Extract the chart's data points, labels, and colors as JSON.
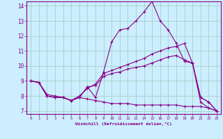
{
  "xlabel": "Windchill (Refroidissement éolien,°C)",
  "bg_color": "#cceeff",
  "line_color": "#880088",
  "grid_color": "#99ccbb",
  "xmin": 0,
  "xmax": 23,
  "ymin": 7,
  "ymax": 14,
  "yticks": [
    7,
    8,
    9,
    10,
    11,
    12,
    13,
    14
  ],
  "xticks": [
    0,
    1,
    2,
    3,
    4,
    5,
    6,
    7,
    8,
    9,
    10,
    11,
    12,
    13,
    14,
    15,
    16,
    17,
    18,
    19,
    20,
    21,
    22,
    23
  ],
  "line1_y": [
    9.0,
    8.9,
    8.0,
    7.9,
    7.9,
    7.7,
    7.9,
    8.6,
    7.9,
    9.6,
    11.6,
    12.4,
    12.5,
    13.0,
    13.6,
    14.3,
    13.0,
    12.4,
    11.5,
    10.3,
    10.2,
    7.6,
    7.2,
    7.0
  ],
  "line2_y": [
    9.0,
    8.9,
    8.1,
    8.0,
    7.9,
    7.7,
    8.0,
    8.5,
    8.8,
    9.5,
    9.7,
    9.9,
    10.1,
    10.3,
    10.5,
    10.8,
    11.0,
    11.2,
    11.3,
    11.5,
    10.2,
    7.9,
    7.6,
    7.0
  ],
  "line3_y": [
    9.0,
    8.9,
    8.0,
    7.9,
    7.9,
    7.7,
    7.9,
    8.6,
    8.7,
    9.3,
    9.5,
    9.6,
    9.8,
    9.9,
    10.0,
    10.2,
    10.4,
    10.6,
    10.7,
    10.4,
    10.2,
    7.9,
    7.6,
    7.0
  ],
  "line4_y": [
    9.0,
    8.9,
    8.0,
    7.9,
    7.9,
    7.7,
    7.9,
    7.8,
    7.7,
    7.6,
    7.5,
    7.5,
    7.5,
    7.4,
    7.4,
    7.4,
    7.4,
    7.4,
    7.4,
    7.3,
    7.3,
    7.3,
    7.2,
    7.0
  ]
}
